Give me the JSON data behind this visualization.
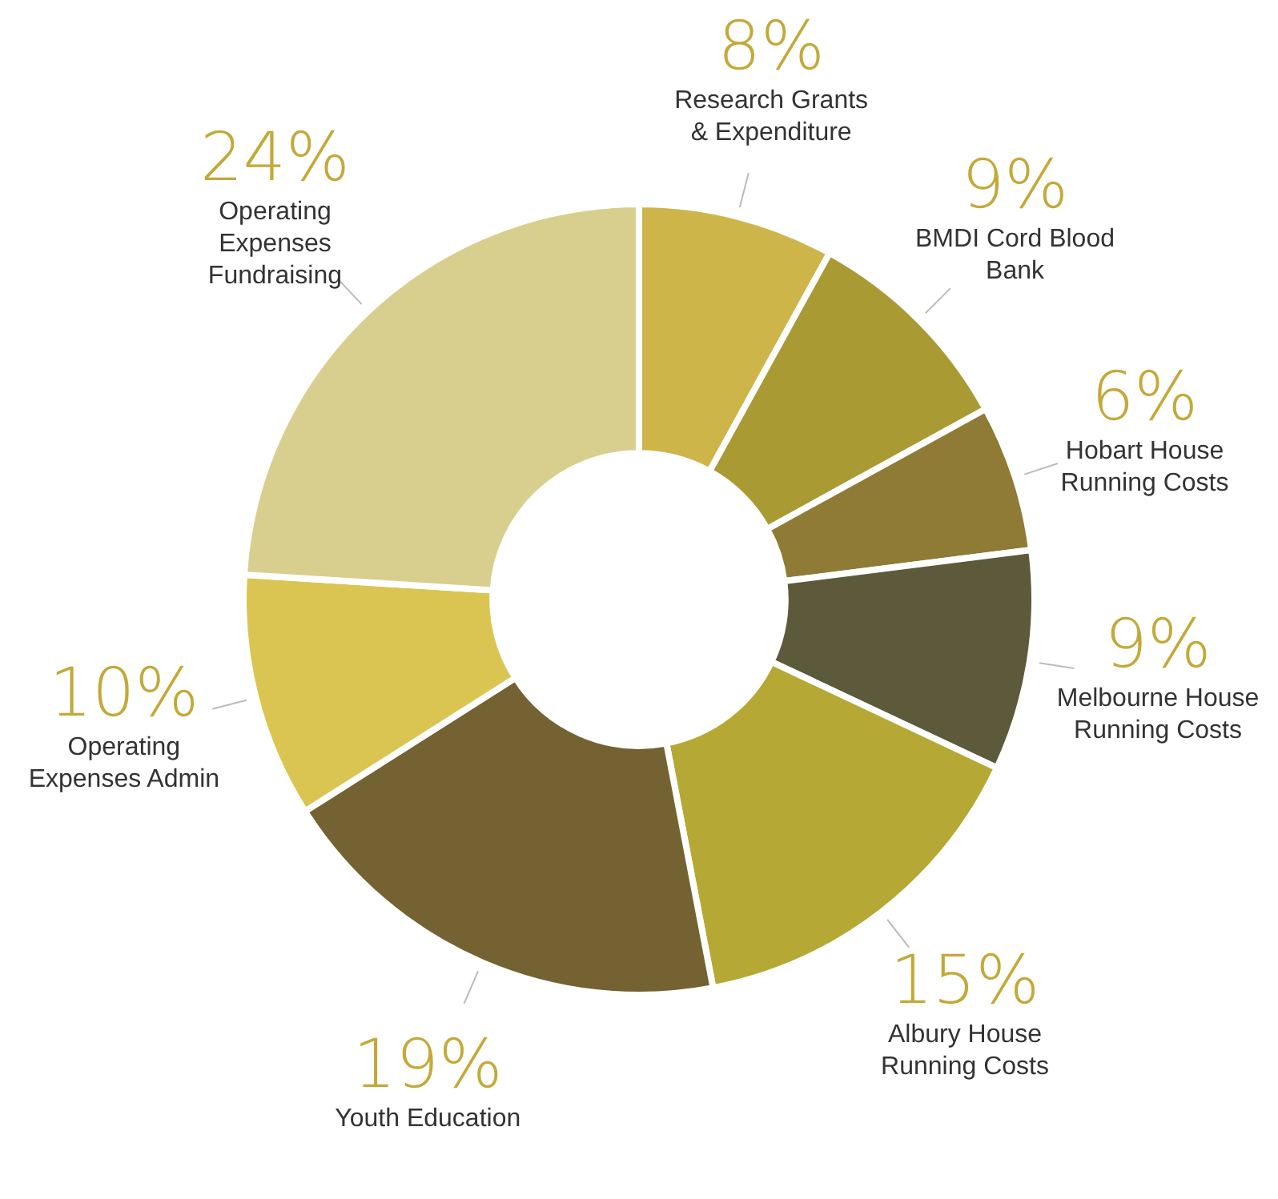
{
  "chart_data": {
    "type": "donut",
    "categories": [
      "Research Grants & Expenditure",
      "BMDI Cord Blood Bank",
      "Hobart House Running Costs",
      "Melbourne House Running Costs",
      "Albury House Running Costs",
      "Youth Education",
      "Operating Expenses Admin",
      "Operating Expenses Fundraising"
    ],
    "values": [
      8,
      9,
      6,
      9,
      15,
      19,
      10,
      24
    ],
    "colors": [
      "#cdb54a",
      "#aa9a34",
      "#8f7b35",
      "#5c5a3b",
      "#b6a834",
      "#756233",
      "#dbc552",
      "#d8cf8e"
    ],
    "value_labels": [
      "8%",
      "9%",
      "6%",
      "9%",
      "15%",
      "19%",
      "10%",
      "24%"
    ],
    "legend": false
  }
}
